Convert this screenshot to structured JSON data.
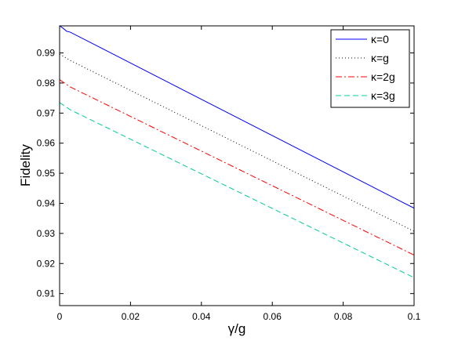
{
  "chart_data": {
    "type": "line",
    "title": "",
    "xlabel": "γ/g",
    "ylabel": "Fidelity",
    "xlim": [
      0,
      0.1
    ],
    "ylim": [
      0.906,
      0.999
    ],
    "xticks": [
      0,
      0.02,
      0.04,
      0.06,
      0.08,
      0.1
    ],
    "xtick_labels": [
      "0",
      "0.02",
      "0.04",
      "0.06",
      "0.08",
      "0.1"
    ],
    "yticks": [
      0.91,
      0.92,
      0.93,
      0.94,
      0.95,
      0.96,
      0.97,
      0.98,
      0.99
    ],
    "ytick_labels": [
      "0.91",
      "0.92",
      "0.93",
      "0.94",
      "0.95",
      "0.96",
      "0.97",
      "0.98",
      "0.99"
    ],
    "grid": false,
    "legend_position": "top-right",
    "x": [
      0,
      0.001,
      0.002,
      0.003,
      0.1
    ],
    "series": [
      {
        "name": "κ=0",
        "color": "#0000ff",
        "style": "solid",
        "values": [
          0.999,
          0.9982,
          0.9972,
          0.9969,
          0.9384
        ]
      },
      {
        "name": "κ=g",
        "color": "#000000",
        "style": "dotted",
        "values": [
          0.9896,
          0.9889,
          0.9882,
          0.9875,
          0.9307
        ]
      },
      {
        "name": "κ=2g",
        "color": "#ff0000",
        "style": "dashdot",
        "values": [
          0.9811,
          0.9803,
          0.9795,
          0.9787,
          0.9228
        ]
      },
      {
        "name": "κ=3g",
        "color": "#00cc99",
        "style": "dashed",
        "values": [
          0.9735,
          0.9727,
          0.9719,
          0.9711,
          0.9153
        ]
      }
    ]
  }
}
